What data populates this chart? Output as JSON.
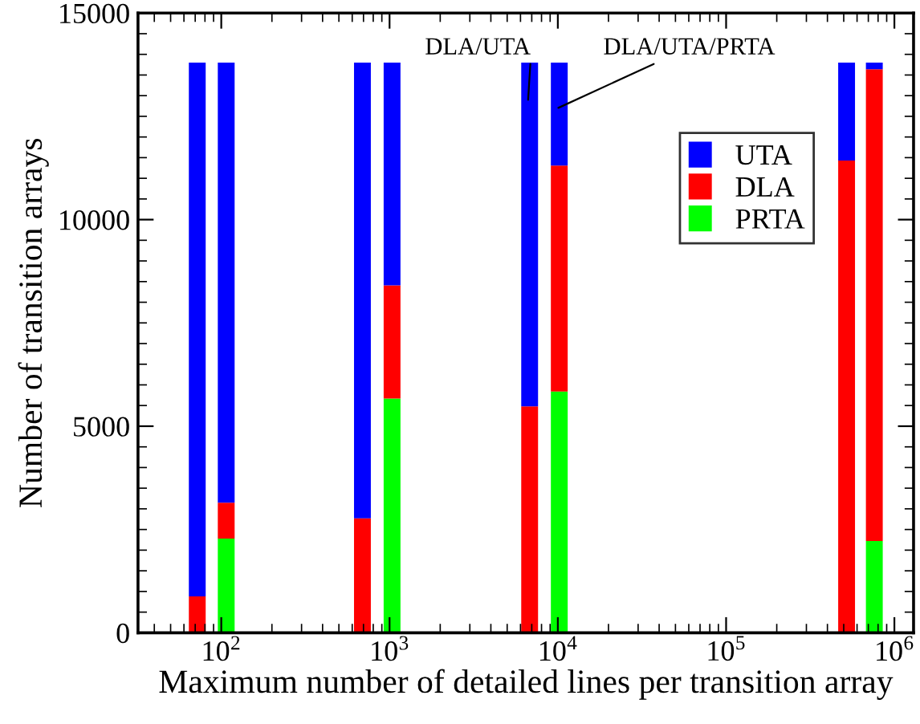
{
  "chart_data": {
    "type": "bar",
    "stacked": true,
    "xlabel": "Maximum number of detailed lines per transition array",
    "ylabel": "Number of transition arrays",
    "x": [
      72,
      107,
      690,
      1035,
      6800,
      10200,
      520000,
      760000
    ],
    "series": [
      {
        "name": "PRTA",
        "color": "#00ff00",
        "values": [
          null,
          2280,
          null,
          5670,
          null,
          5840,
          null,
          2220
        ]
      },
      {
        "name": "DLA",
        "color": "#ff0000",
        "values": [
          880,
          870,
          2770,
          2740,
          5480,
          5470,
          11430,
          11420
        ]
      },
      {
        "name": "UTA",
        "color": "#0000ff",
        "values": [
          12920,
          10650,
          11030,
          5390,
          8320,
          2490,
          2370,
          160
        ]
      }
    ],
    "log": "x",
    "xlim": [
      32,
      1300000
    ],
    "xticks": [
      {
        "value": 100,
        "label": "10$^{2}$"
      },
      {
        "value": 1000,
        "label": "10$^{3}$"
      },
      {
        "value": 10000,
        "label": "10$^{4}$"
      },
      {
        "value": 100000,
        "label": "10$^{5}$"
      },
      {
        "value": 1000000,
        "label": "10$^{6}$"
      }
    ],
    "ylim": [
      0,
      15000
    ],
    "yticks": [
      0,
      5000,
      10000,
      15000
    ],
    "annotations": [
      "DLA/UTA",
      "DLA/UTA/PRTA"
    ],
    "legend": "top right",
    "grid": false
  }
}
